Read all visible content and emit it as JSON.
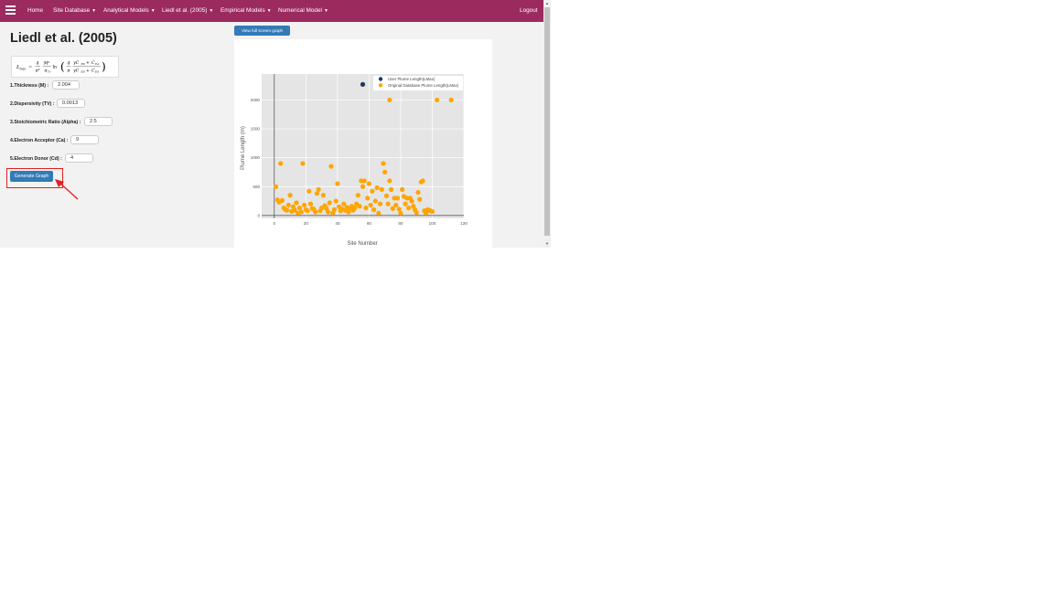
{
  "nav": {
    "items": [
      {
        "label": "Home",
        "dropdown": false
      },
      {
        "label": "Site Database",
        "dropdown": true
      },
      {
        "label": "Analytical Models",
        "dropdown": true
      },
      {
        "label": "Liedl et al. (2005)",
        "dropdown": true
      },
      {
        "label": "Empirical Models",
        "dropdown": true
      },
      {
        "label": "Numerical Model",
        "dropdown": true
      }
    ],
    "logout": "Logout",
    "color": "#9b2a5f"
  },
  "page": {
    "title": "Liedl et al. (2005)",
    "formula": {
      "lhs": "L",
      "lhs_sub": "max",
      "eq": "=",
      "c_num": "4",
      "c_den": "π²",
      "m_num": "M²",
      "m_den": "α",
      "m_den_sub": "Tv",
      "ln": "ln",
      "in_num_coef": "4",
      "in_den_coef": "π",
      "g_num": "γC",
      "g_num_sub": "ED",
      "plus": "+",
      "c_top": "C",
      "c_top_sub": "EA",
      "g_den": "γC",
      "g_den_sub": "ED",
      "c_bot": "C",
      "c_bot_sub": "EA"
    }
  },
  "form": {
    "fields": [
      {
        "label": "1.Thickness (M) :",
        "value": "2.004"
      },
      {
        "label": "2.Dispersivity (TV) :",
        "value": "0.0013"
      },
      {
        "label": "3.Stoichiometric Ratio (Alpha) :",
        "value": "2.5"
      },
      {
        "label": "4.Electron Acceptor (Ca) :",
        "value": "9"
      },
      {
        "label": "5.Electron Donor (Cd) :",
        "value": "4"
      }
    ],
    "generate_label": "Generate Graph"
  },
  "toolbar": {
    "view_full_label": "View full screen graph"
  },
  "chart_data": {
    "type": "scatter",
    "xlabel": "Site Number",
    "ylabel": "Plume Length (m)",
    "xlim": [
      -8,
      120
    ],
    "ylim": [
      -50,
      2450
    ],
    "xticks": [
      0,
      20,
      40,
      60,
      80,
      100,
      120
    ],
    "yticks": [
      0,
      500,
      1000,
      1500,
      2000
    ],
    "grid": true,
    "legend_position": "top-right",
    "plot_bg": "#e5e5e5",
    "series": [
      {
        "name": "User Plume Length(LMax)",
        "color": "#1c3a5e",
        "points": [
          [
            56,
            2270
          ]
        ]
      },
      {
        "name": "Original Database Plume Length(LMax)",
        "color": "#ffa500",
        "points": [
          [
            1,
            500
          ],
          [
            2,
            270
          ],
          [
            3,
            230
          ],
          [
            4,
            900
          ],
          [
            5,
            260
          ],
          [
            6,
            130
          ],
          [
            7,
            100
          ],
          [
            8,
            90
          ],
          [
            9,
            180
          ],
          [
            10,
            350
          ],
          [
            11,
            70
          ],
          [
            12,
            150
          ],
          [
            13,
            90
          ],
          [
            14,
            220
          ],
          [
            15,
            40
          ],
          [
            16,
            130
          ],
          [
            17,
            60
          ],
          [
            18,
            900
          ],
          [
            19,
            180
          ],
          [
            20,
            100
          ],
          [
            21,
            80
          ],
          [
            22,
            420
          ],
          [
            23,
            200
          ],
          [
            24,
            120
          ],
          [
            25,
            110
          ],
          [
            26,
            60
          ],
          [
            27,
            380
          ],
          [
            28,
            450
          ],
          [
            29,
            80
          ],
          [
            30,
            130
          ],
          [
            31,
            350
          ],
          [
            32,
            170
          ],
          [
            33,
            120
          ],
          [
            34,
            60
          ],
          [
            35,
            220
          ],
          [
            36,
            850
          ],
          [
            37,
            40
          ],
          [
            38,
            100
          ],
          [
            39,
            250
          ],
          [
            40,
            550
          ],
          [
            41,
            150
          ],
          [
            42,
            80
          ],
          [
            43,
            110
          ],
          [
            44,
            200
          ],
          [
            45,
            90
          ],
          [
            46,
            140
          ],
          [
            47,
            60
          ],
          [
            48,
            120
          ],
          [
            49,
            160
          ],
          [
            50,
            90
          ],
          [
            51,
            130
          ],
          [
            52,
            200
          ],
          [
            53,
            350
          ],
          [
            54,
            160
          ],
          [
            55,
            600
          ],
          [
            56,
            500
          ],
          [
            57,
            600
          ],
          [
            58,
            130
          ],
          [
            59,
            300
          ],
          [
            60,
            550
          ],
          [
            61,
            180
          ],
          [
            62,
            420
          ],
          [
            63,
            100
          ],
          [
            64,
            250
          ],
          [
            65,
            480
          ],
          [
            66,
            40
          ],
          [
            67,
            200
          ],
          [
            68,
            450
          ],
          [
            69,
            900
          ],
          [
            70,
            750
          ],
          [
            71,
            340
          ],
          [
            72,
            200
          ],
          [
            73,
            600
          ],
          [
            74,
            450
          ],
          [
            75,
            120
          ],
          [
            76,
            300
          ],
          [
            77,
            180
          ],
          [
            78,
            300
          ],
          [
            79,
            110
          ],
          [
            80,
            40
          ],
          [
            81,
            450
          ],
          [
            82,
            330
          ],
          [
            83,
            200
          ],
          [
            84,
            300
          ],
          [
            85,
            130
          ],
          [
            86,
            300
          ],
          [
            87,
            250
          ],
          [
            88,
            160
          ],
          [
            89,
            100
          ],
          [
            90,
            50
          ],
          [
            91,
            400
          ],
          [
            92,
            280
          ],
          [
            93,
            580
          ],
          [
            94,
            600
          ],
          [
            95,
            80
          ],
          [
            96,
            40
          ],
          [
            97,
            100
          ],
          [
            98,
            90
          ],
          [
            99,
            80
          ],
          [
            100,
            70
          ],
          [
            73,
            2000
          ],
          [
            103,
            2000
          ],
          [
            112,
            2000
          ]
        ]
      }
    ]
  }
}
